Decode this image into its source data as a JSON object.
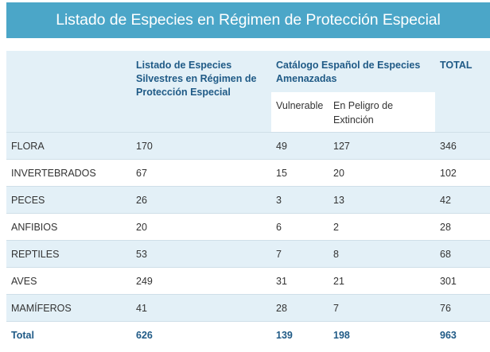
{
  "title": "Listado de Especies en Régimen de Protección Especial",
  "header": {
    "col_listado": "Listado de Especies Silvestres en Régimen de Protección Especial",
    "col_catalogo": "Catálogo Español de Especies Amenazadas",
    "col_total": "TOTAL",
    "sub_vulnerable": "Vulnerable",
    "sub_extincion": "En Peligro de Extinción"
  },
  "rows": [
    {
      "group": "FLORA",
      "listado": "170",
      "vulnerable": "49",
      "extincion": "127",
      "total": "346"
    },
    {
      "group": "INVERTEBRADOS",
      "listado": "67",
      "vulnerable": "15",
      "extincion": "20",
      "total": "102"
    },
    {
      "group": "PECES",
      "listado": "26",
      "vulnerable": "3",
      "extincion": "13",
      "total": "42"
    },
    {
      "group": "ANFIBIOS",
      "listado": "20",
      "vulnerable": "6",
      "extincion": "2",
      "total": "28"
    },
    {
      "group": "REPTILES",
      "listado": "53",
      "vulnerable": "7",
      "extincion": "8",
      "total": "68"
    },
    {
      "group": "AVES",
      "listado": "249",
      "vulnerable": "31",
      "extincion": "21",
      "total": "301"
    },
    {
      "group": "MAMÍFEROS",
      "listado": "41",
      "vulnerable": "28",
      "extincion": "7",
      "total": "76"
    }
  ],
  "totals": {
    "label": "Total",
    "listado": "626",
    "vulnerable": "139",
    "extincion": "198",
    "total": "963"
  }
}
